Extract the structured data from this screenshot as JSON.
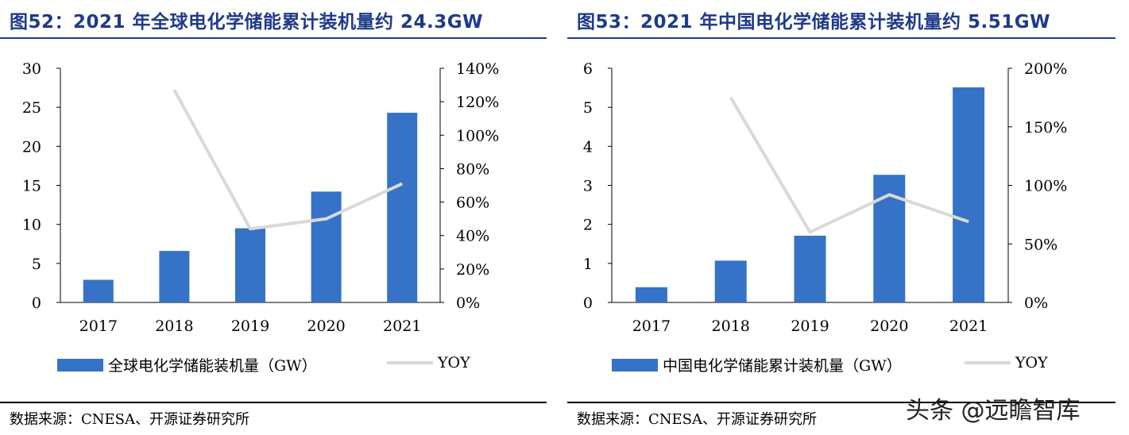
{
  "colors": {
    "bar": "#3672c6",
    "line": "#d9d9d9",
    "title": "#1f3a8a"
  },
  "watermark": "头条 @远瞻智库",
  "charts": [
    {
      "title": "图52：2021 年全球电化学储能累计装机量约 24.3GW",
      "source": "数据来源：CNESA、开源证券研究所",
      "chart_data": {
        "type": "bar",
        "categories": [
          "2017",
          "2018",
          "2019",
          "2020",
          "2021"
        ],
        "series": [
          {
            "name": "全球电化学储能装机量（GW）",
            "type": "bar",
            "axis": "left",
            "values": [
              2.9,
              6.6,
              9.5,
              14.2,
              24.3
            ]
          },
          {
            "name": "YOY",
            "type": "line",
            "axis": "right",
            "values": [
              null,
              1.27,
              0.44,
              0.5,
              0.71
            ]
          }
        ],
        "ylim": [
          0,
          30
        ],
        "yticks": [
          "0",
          "5",
          "10",
          "15",
          "20",
          "25",
          "30"
        ],
        "y2lim": [
          0,
          1.4
        ],
        "y2ticks": [
          "0%",
          "20%",
          "40%",
          "60%",
          "80%",
          "100%",
          "120%",
          "140%"
        ],
        "legend_position": "bottom",
        "grid": false
      }
    },
    {
      "title": "图53：2021 年中国电化学储能累计装机量约 5.51GW",
      "source": "数据来源：CNESA、开源证券研究所",
      "chart_data": {
        "type": "bar",
        "categories": [
          "2017",
          "2018",
          "2019",
          "2020",
          "2021"
        ],
        "series": [
          {
            "name": "中国电化学储能累计装机量（GW）",
            "type": "bar",
            "axis": "left",
            "values": [
              0.39,
              1.07,
              1.71,
              3.27,
              5.51
            ]
          },
          {
            "name": "YOY",
            "type": "line",
            "axis": "right",
            "values": [
              null,
              1.75,
              0.6,
              0.92,
              0.69
            ]
          }
        ],
        "ylim": [
          0,
          6
        ],
        "yticks": [
          "0",
          "1",
          "2",
          "3",
          "4",
          "5",
          "6"
        ],
        "y2lim": [
          0,
          2.0
        ],
        "y2ticks": [
          "0%",
          "50%",
          "100%",
          "150%",
          "200%"
        ],
        "legend_position": "bottom",
        "grid": false
      }
    }
  ]
}
